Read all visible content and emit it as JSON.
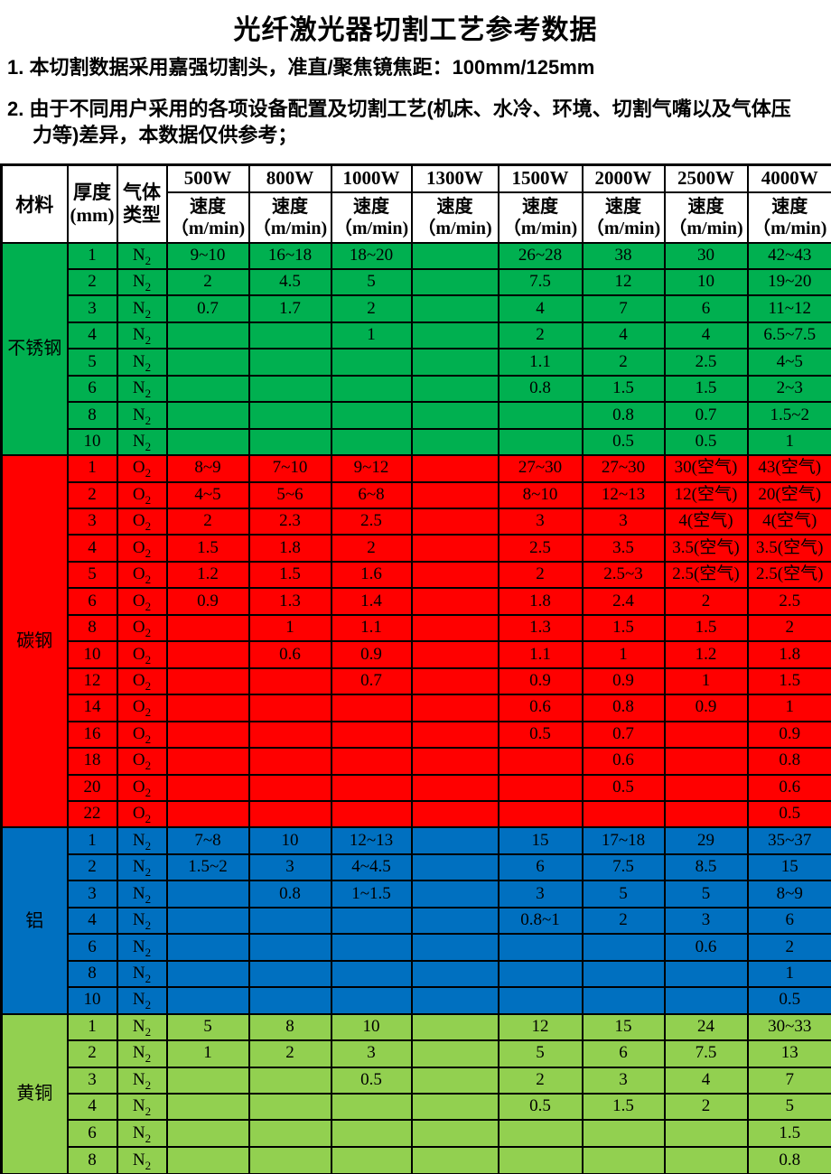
{
  "title": "光纤激光器切割工艺参考数据",
  "notes": [
    "1. 本切割数据采用嘉强切割头，准直/聚焦镜焦距：100mm/125mm",
    "2. 由于不同用户采用的各项设备配置及切割工艺(机床、水冷、环境、切割气嘴以及气体压\n力等)差异，本数据仅供参考；"
  ],
  "table": {
    "header": {
      "material": "材料",
      "thickness": "厚度\n(mm)",
      "gas": "气体\n类型",
      "powers": [
        "500W",
        "800W",
        "1000W",
        "1300W",
        "1500W",
        "2000W",
        "2500W",
        "4000W"
      ],
      "speed_label": "速度\n（m/min)"
    },
    "sections": [
      {
        "material": "不锈钢",
        "color": "#00B050",
        "rows": [
          {
            "t": "1",
            "gas": "N2",
            "v": [
              "9~10",
              "16~18",
              "18~20",
              "",
              "26~28",
              "38",
              "30",
              "42~43"
            ]
          },
          {
            "t": "2",
            "gas": "N2",
            "v": [
              "2",
              "4.5",
              "5",
              "",
              "7.5",
              "12",
              "10",
              "19~20"
            ]
          },
          {
            "t": "3",
            "gas": "N2",
            "v": [
              "0.7",
              "1.7",
              "2",
              "",
              "4",
              "7",
              "6",
              "11~12"
            ]
          },
          {
            "t": "4",
            "gas": "N2",
            "v": [
              "",
              "",
              "1",
              "",
              "2",
              "4",
              "4",
              "6.5~7.5"
            ]
          },
          {
            "t": "5",
            "gas": "N2",
            "v": [
              "",
              "",
              "",
              "",
              "1.1",
              "2",
              "2.5",
              "4~5"
            ]
          },
          {
            "t": "6",
            "gas": "N2",
            "v": [
              "",
              "",
              "",
              "",
              "0.8",
              "1.5",
              "1.5",
              "2~3"
            ]
          },
          {
            "t": "8",
            "gas": "N2",
            "v": [
              "",
              "",
              "",
              "",
              "",
              "0.8",
              "0.7",
              "1.5~2"
            ]
          },
          {
            "t": "10",
            "gas": "N2",
            "v": [
              "",
              "",
              "",
              "",
              "",
              "0.5",
              "0.5",
              "1"
            ]
          }
        ]
      },
      {
        "material": "碳钢",
        "color": "#FF0000",
        "rows": [
          {
            "t": "1",
            "gas": "O2",
            "v": [
              "8~9",
              "7~10",
              "9~12",
              "",
              "27~30",
              "27~30",
              "30(空气)",
              "43(空气)"
            ]
          },
          {
            "t": "2",
            "gas": "O2",
            "v": [
              "4~5",
              "5~6",
              "6~8",
              "",
              "8~10",
              "12~13",
              "12(空气)",
              "20(空气)"
            ]
          },
          {
            "t": "3",
            "gas": "O2",
            "v": [
              "2",
              "2.3",
              "2.5",
              "",
              "3",
              "3",
              "4(空气)",
              "4(空气)"
            ]
          },
          {
            "t": "4",
            "gas": "O2",
            "v": [
              "1.5",
              "1.8",
              "2",
              "",
              "2.5",
              "3.5",
              "3.5(空气)",
              "3.5(空气)"
            ]
          },
          {
            "t": "5",
            "gas": "O2",
            "v": [
              "1.2",
              "1.5",
              "1.6",
              "",
              "2",
              "2.5~3",
              "2.5(空气)",
              "2.5(空气)"
            ]
          },
          {
            "t": "6",
            "gas": "O2",
            "v": [
              "0.9",
              "1.3",
              "1.4",
              "",
              "1.8",
              "2.4",
              "2",
              "2.5"
            ]
          },
          {
            "t": "8",
            "gas": "O2",
            "v": [
              "",
              "1",
              "1.1",
              "",
              "1.3",
              "1.5",
              "1.5",
              "2"
            ]
          },
          {
            "t": "10",
            "gas": "O2",
            "v": [
              "",
              "0.6",
              "0.9",
              "",
              "1.1",
              "1",
              "1.2",
              "1.8"
            ]
          },
          {
            "t": "12",
            "gas": "O2",
            "v": [
              "",
              "",
              "0.7",
              "",
              "0.9",
              "0.9",
              "1",
              "1.5"
            ]
          },
          {
            "t": "14",
            "gas": "O2",
            "v": [
              "",
              "",
              "",
              "",
              "0.6",
              "0.8",
              "0.9",
              "1"
            ]
          },
          {
            "t": "16",
            "gas": "O2",
            "v": [
              "",
              "",
              "",
              "",
              "0.5",
              "0.7",
              "",
              "0.9"
            ]
          },
          {
            "t": "18",
            "gas": "O2",
            "v": [
              "",
              "",
              "",
              "",
              "",
              "0.6",
              "",
              "0.8"
            ]
          },
          {
            "t": "20",
            "gas": "O2",
            "v": [
              "",
              "",
              "",
              "",
              "",
              "0.5",
              "",
              "0.6"
            ]
          },
          {
            "t": "22",
            "gas": "O2",
            "v": [
              "",
              "",
              "",
              "",
              "",
              "",
              "",
              "0.5"
            ]
          }
        ]
      },
      {
        "material": "铝",
        "color": "#0070C0",
        "rows": [
          {
            "t": "1",
            "gas": "N2",
            "v": [
              "7~8",
              "10",
              "12~13",
              "",
              "15",
              "17~18",
              "29",
              "35~37"
            ]
          },
          {
            "t": "2",
            "gas": "N2",
            "v": [
              "1.5~2",
              "3",
              "4~4.5",
              "",
              "6",
              "7.5",
              "8.5",
              "15"
            ]
          },
          {
            "t": "3",
            "gas": "N2",
            "v": [
              "",
              "0.8",
              "1~1.5",
              "",
              "3",
              "5",
              "5",
              "8~9"
            ]
          },
          {
            "t": "4",
            "gas": "N2",
            "v": [
              "",
              "",
              "",
              "",
              "0.8~1",
              "2",
              "3",
              "6"
            ]
          },
          {
            "t": "6",
            "gas": "N2",
            "v": [
              "",
              "",
              "",
              "",
              "",
              "",
              "0.6",
              "2"
            ]
          },
          {
            "t": "8",
            "gas": "N2",
            "v": [
              "",
              "",
              "",
              "",
              "",
              "",
              "",
              "1"
            ]
          },
          {
            "t": "10",
            "gas": "N2",
            "v": [
              "",
              "",
              "",
              "",
              "",
              "",
              "",
              "0.5"
            ]
          }
        ]
      },
      {
        "material": "黄铜",
        "color": "#92D050",
        "rows": [
          {
            "t": "1",
            "gas": "N2",
            "v": [
              "5",
              "8",
              "10",
              "",
              "12",
              "15",
              "24",
              "30~33"
            ]
          },
          {
            "t": "2",
            "gas": "N2",
            "v": [
              "1",
              "2",
              "3",
              "",
              "5",
              "6",
              "7.5",
              "13"
            ]
          },
          {
            "t": "3",
            "gas": "N2",
            "v": [
              "",
              "",
              "0.5",
              "",
              "2",
              "3",
              "4",
              "7"
            ]
          },
          {
            "t": "4",
            "gas": "N2",
            "v": [
              "",
              "",
              "",
              "",
              "0.5",
              "1.5",
              "2",
              "5"
            ]
          },
          {
            "t": "6",
            "gas": "N2",
            "v": [
              "",
              "",
              "",
              "",
              "",
              "",
              "",
              "1.5"
            ]
          },
          {
            "t": "8",
            "gas": "N2",
            "v": [
              "",
              "",
              "",
              "",
              "",
              "",
              "",
              "0.8"
            ]
          }
        ]
      }
    ]
  },
  "colors": {
    "stainless_steel": "#00B050",
    "carbon_steel": "#FF0000",
    "aluminum": "#0070C0",
    "brass": "#92D050",
    "border": "#000000",
    "header_background": "#FFFFFF"
  }
}
